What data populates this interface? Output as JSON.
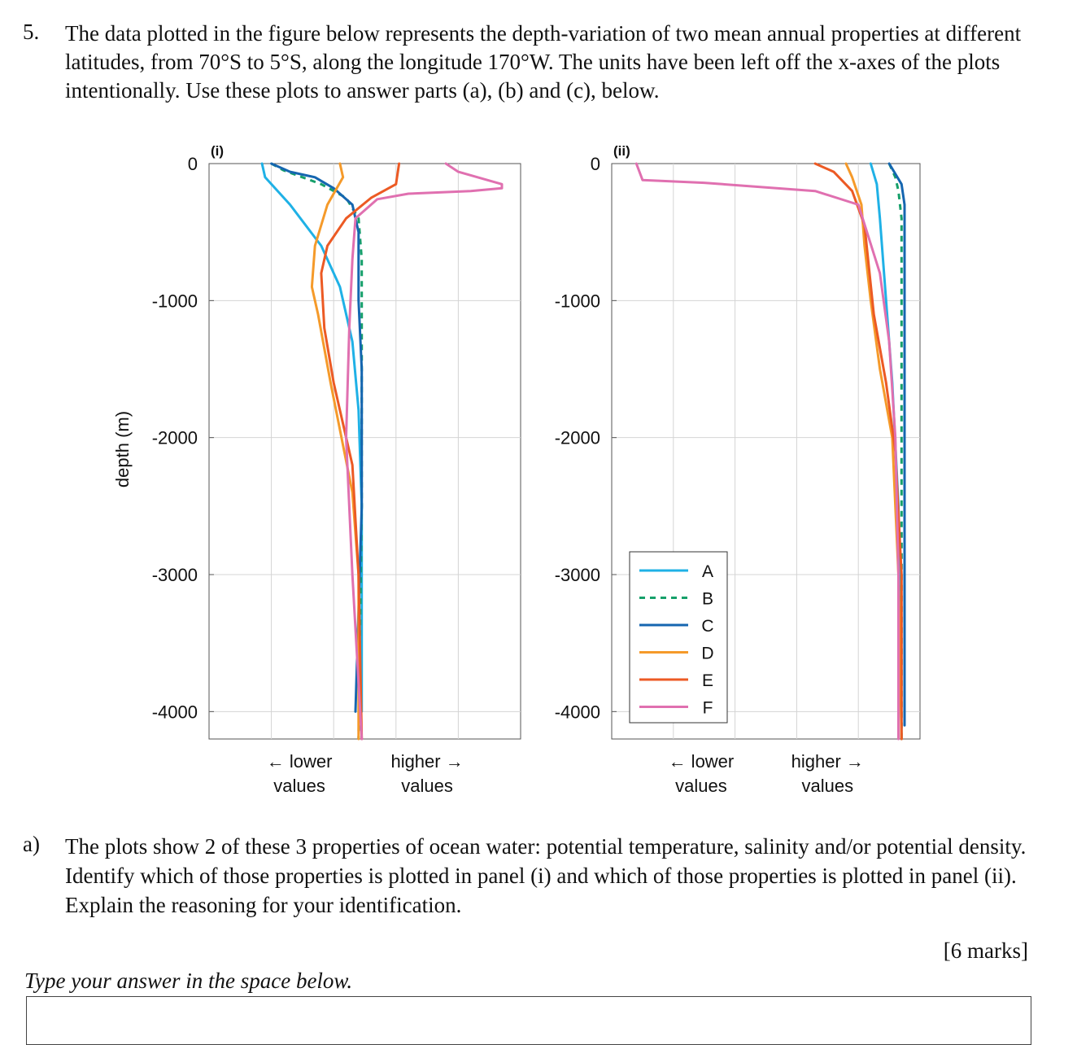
{
  "question": {
    "number": "5.",
    "text": "The data plotted in the figure below represents the depth-variation of two mean annual properties at different latitudes, from 70°S to 5°S, along the longitude 170°W. The units have been left off the x-axes of the plots intentionally. Use these plots to answer parts (a), (b) and (c), below."
  },
  "part_a": {
    "label": "a)",
    "text": "The plots show 2 of these 3 properties of ocean water: potential temperature, salinity and/or potential density. Identify which of those properties is plotted in panel (i) and which of those properties is plotted in panel (ii). Explain the reasoning for your identification.",
    "marks": "[6 marks]",
    "instruction": "Type your answer in the space below."
  },
  "colors": {
    "A": "#1fb1e6",
    "B": "#16a06a",
    "C": "#1566b0",
    "D": "#f59a2a",
    "E": "#ec5a24",
    "F": "#e070b0",
    "grid": "#d4d4d4",
    "axis": "#555555"
  },
  "chart_data": [
    {
      "type": "line",
      "panel_label": "(i)",
      "ylabel": "depth (m)",
      "ylim": [
        -4200,
        0
      ],
      "yticks": [
        0,
        -1000,
        -2000,
        -3000,
        -4000
      ],
      "xlim": [
        0,
        5
      ],
      "x_lower_label": [
        "← lower",
        "values"
      ],
      "x_higher_label": [
        "higher →",
        "values"
      ],
      "grid": true,
      "series": [
        {
          "name": "A",
          "style": "solid",
          "points": [
            [
              0.85,
              0
            ],
            [
              0.9,
              -100
            ],
            [
              1.3,
              -300
            ],
            [
              1.8,
              -600
            ],
            [
              2.1,
              -900
            ],
            [
              2.3,
              -1300
            ],
            [
              2.4,
              -1800
            ],
            [
              2.45,
              -2500
            ],
            [
              2.45,
              -4000
            ]
          ]
        },
        {
          "name": "B",
          "style": "dashed",
          "points": [
            [
              1.0,
              0
            ],
            [
              1.2,
              -50
            ],
            [
              1.8,
              -150
            ],
            [
              2.2,
              -250
            ],
            [
              2.4,
              -400
            ],
            [
              2.45,
              -700
            ],
            [
              2.45,
              -1500
            ],
            [
              2.45,
              -2500
            ],
            [
              2.4,
              -4200
            ]
          ]
        },
        {
          "name": "C",
          "style": "solid",
          "points": [
            [
              1.0,
              0
            ],
            [
              1.3,
              -60
            ],
            [
              1.7,
              -100
            ],
            [
              2.0,
              -180
            ],
            [
              2.3,
              -300
            ],
            [
              2.4,
              -500
            ],
            [
              2.4,
              -1000
            ],
            [
              2.45,
              -1500
            ],
            [
              2.45,
              -2500
            ],
            [
              2.35,
              -4000
            ]
          ]
        },
        {
          "name": "D",
          "style": "solid",
          "points": [
            [
              2.1,
              0
            ],
            [
              2.15,
              -100
            ],
            [
              1.9,
              -300
            ],
            [
              1.7,
              -600
            ],
            [
              1.65,
              -900
            ],
            [
              1.75,
              -1100
            ],
            [
              1.95,
              -1600
            ],
            [
              2.3,
              -2400
            ],
            [
              2.4,
              -3000
            ],
            [
              2.4,
              -4200
            ]
          ]
        },
        {
          "name": "E",
          "style": "solid",
          "points": [
            [
              3.05,
              0
            ],
            [
              3.0,
              -150
            ],
            [
              2.6,
              -250
            ],
            [
              2.2,
              -400
            ],
            [
              1.9,
              -600
            ],
            [
              1.8,
              -800
            ],
            [
              1.85,
              -1200
            ],
            [
              2.0,
              -1600
            ],
            [
              2.3,
              -2200
            ],
            [
              2.4,
              -3000
            ],
            [
              2.45,
              -4200
            ]
          ]
        },
        {
          "name": "F",
          "style": "solid",
          "points": [
            [
              3.8,
              0
            ],
            [
              4.0,
              -60
            ],
            [
              4.7,
              -150
            ],
            [
              4.7,
              -180
            ],
            [
              4.2,
              -200
            ],
            [
              3.2,
              -220
            ],
            [
              2.7,
              -260
            ],
            [
              2.35,
              -400
            ],
            [
              2.3,
              -700
            ],
            [
              2.25,
              -1200
            ],
            [
              2.2,
              -2000
            ],
            [
              2.3,
              -3000
            ],
            [
              2.45,
              -4200
            ]
          ]
        }
      ]
    },
    {
      "type": "line",
      "panel_label": "(ii)",
      "ylim": [
        -4200,
        0
      ],
      "yticks": [
        0,
        -1000,
        -2000,
        -3000,
        -4000
      ],
      "xlim": [
        0,
        5
      ],
      "x_lower_label": [
        "← lower",
        "values"
      ],
      "x_higher_label": [
        "higher →",
        "values"
      ],
      "grid": true,
      "legend_position": "bottom-left",
      "legend": [
        "A",
        "B",
        "C",
        "D",
        "E",
        "F"
      ],
      "series": [
        {
          "name": "A",
          "style": "solid",
          "points": [
            [
              4.2,
              0
            ],
            [
              4.3,
              -150
            ],
            [
              4.35,
              -400
            ],
            [
              4.45,
              -1000
            ],
            [
              4.55,
              -1600
            ],
            [
              4.65,
              -2500
            ],
            [
              4.7,
              -4200
            ]
          ]
        },
        {
          "name": "B",
          "style": "dashed",
          "points": [
            [
              4.5,
              0
            ],
            [
              4.6,
              -100
            ],
            [
              4.65,
              -200
            ],
            [
              4.7,
              -400
            ],
            [
              4.7,
              -2000
            ],
            [
              4.7,
              -4200
            ]
          ]
        },
        {
          "name": "C",
          "style": "solid",
          "points": [
            [
              4.5,
              0
            ],
            [
              4.7,
              -150
            ],
            [
              4.75,
              -300
            ],
            [
              4.75,
              -2000
            ],
            [
              4.75,
              -4100
            ]
          ]
        },
        {
          "name": "D",
          "style": "solid",
          "points": [
            [
              3.8,
              0
            ],
            [
              3.9,
              -100
            ],
            [
              4.05,
              -300
            ],
            [
              4.1,
              -600
            ],
            [
              4.2,
              -1000
            ],
            [
              4.35,
              -1500
            ],
            [
              4.55,
              -2000
            ],
            [
              4.65,
              -3000
            ],
            [
              4.7,
              -4200
            ]
          ]
        },
        {
          "name": "E",
          "style": "solid",
          "points": [
            [
              3.3,
              0
            ],
            [
              3.6,
              -60
            ],
            [
              3.9,
              -200
            ],
            [
              4.1,
              -450
            ],
            [
              4.25,
              -1100
            ],
            [
              4.45,
              -1600
            ],
            [
              4.6,
              -2100
            ],
            [
              4.7,
              -3000
            ],
            [
              4.7,
              -4200
            ]
          ]
        },
        {
          "name": "F",
          "style": "solid",
          "points": [
            [
              0.4,
              0
            ],
            [
              0.5,
              -120
            ],
            [
              1.5,
              -140
            ],
            [
              3.3,
              -200
            ],
            [
              4.0,
              -300
            ],
            [
              4.35,
              -800
            ],
            [
              4.5,
              -1300
            ],
            [
              4.6,
              -2000
            ],
            [
              4.65,
              -3000
            ],
            [
              4.65,
              -4200
            ]
          ]
        }
      ]
    }
  ]
}
